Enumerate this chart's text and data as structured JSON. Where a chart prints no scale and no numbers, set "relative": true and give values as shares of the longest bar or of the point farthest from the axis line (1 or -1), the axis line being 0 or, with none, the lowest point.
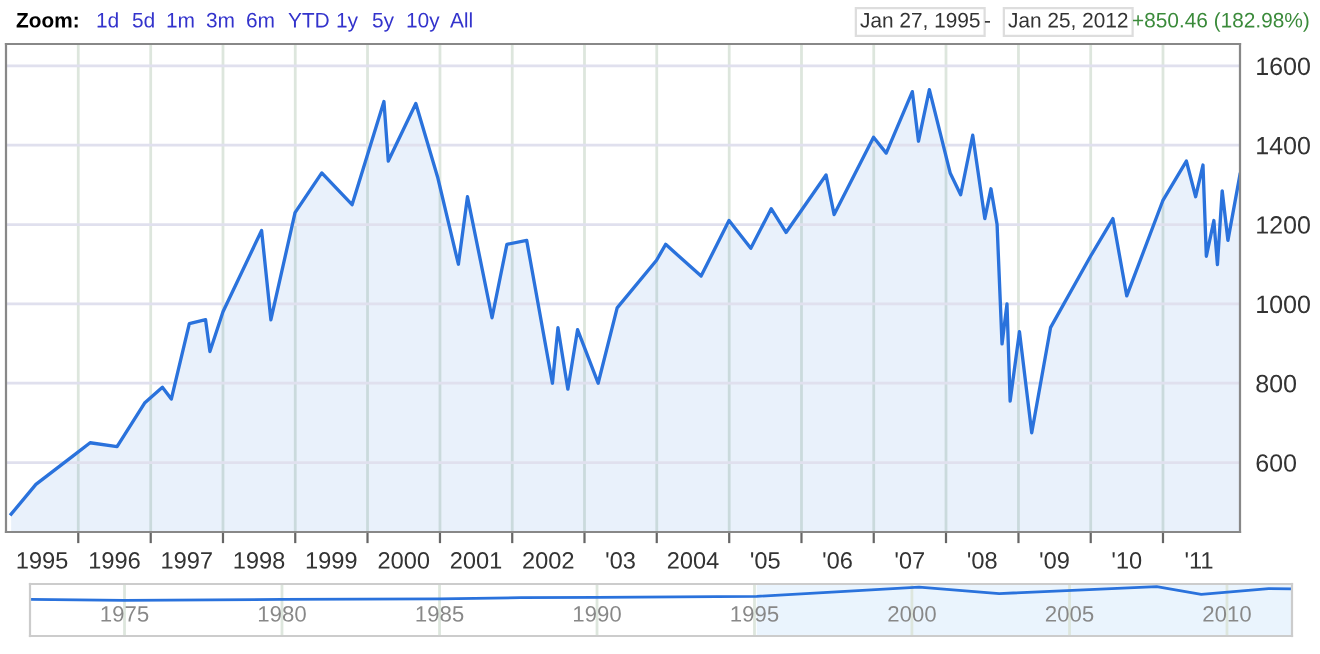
{
  "chart_data": [
    {
      "type": "area",
      "annotations": [
        "Zoom:",
        "1d",
        "5d",
        "1m",
        "3m",
        "6m",
        "YTD",
        "1y",
        "5y",
        "10y",
        "All",
        "Jan 27, 1995",
        "-",
        "Jan 25, 2012",
        "+850.46 (182.98%)"
      ],
      "xlim": [
        "1995-01-01",
        "2012-01-25"
      ],
      "ylim": [
        425,
        1655
      ],
      "yticks": [
        600,
        800,
        1000,
        1200,
        1400,
        1600
      ],
      "grid": true,
      "xticks": [
        {
          "value": "1995-07-02",
          "label": "1995"
        },
        {
          "value": "1996-01-01",
          "label": null
        },
        {
          "value": "1996-07-02",
          "label": "1996"
        },
        {
          "value": "1997-01-01",
          "label": null
        },
        {
          "value": "1997-07-02",
          "label": "1997"
        },
        {
          "value": "1998-01-01",
          "label": null
        },
        {
          "value": "1998-07-02",
          "label": "1998"
        },
        {
          "value": "1999-01-01",
          "label": null
        },
        {
          "value": "1999-07-02",
          "label": "1999"
        },
        {
          "value": "2000-01-01",
          "label": null
        },
        {
          "value": "2000-07-02",
          "label": "2000"
        },
        {
          "value": "2001-01-01",
          "label": null
        },
        {
          "value": "2001-07-02",
          "label": "2001"
        },
        {
          "value": "2002-01-01",
          "label": null
        },
        {
          "value": "2002-07-02",
          "label": "2002"
        },
        {
          "value": "2003-01-01",
          "label": null
        },
        {
          "value": "2003-07-02",
          "label": "'03"
        },
        {
          "value": "2004-01-01",
          "label": null
        },
        {
          "value": "2004-07-02",
          "label": "2004"
        },
        {
          "value": "2005-01-01",
          "label": null
        },
        {
          "value": "2005-07-02",
          "label": "'05"
        },
        {
          "value": "2006-01-01",
          "label": null
        },
        {
          "value": "2006-07-02",
          "label": "'06"
        },
        {
          "value": "2007-01-01",
          "label": null
        },
        {
          "value": "2007-07-02",
          "label": "'07"
        },
        {
          "value": "2008-01-01",
          "label": null
        },
        {
          "value": "2008-07-02",
          "label": "'08"
        },
        {
          "value": "2009-01-01",
          "label": null
        },
        {
          "value": "2009-07-02",
          "label": "'09"
        },
        {
          "value": "2010-01-01",
          "label": null
        },
        {
          "value": "2010-07-02",
          "label": "'10"
        },
        {
          "value": "2011-01-01",
          "label": null
        },
        {
          "value": "2011-07-02",
          "label": "'11"
        }
      ],
      "x": [
        "1995-01-27",
        "1995-06-01",
        "1995-12-01",
        "1996-03-01",
        "1996-07-15",
        "1996-12-01",
        "1997-03-01",
        "1997-04-15",
        "1997-07-15",
        "1997-10-05",
        "1997-10-27",
        "1998-01-01",
        "1998-07-15",
        "1998-08-31",
        "1998-12-31",
        "1999-05-15",
        "1999-10-15",
        "2000-03-24",
        "2000-04-15",
        "2000-09-01",
        "2000-12-20",
        "2001-04-04",
        "2001-05-20",
        "2001-09-21",
        "2001-12-05",
        "2002-03-15",
        "2002-07-23",
        "2002-08-20",
        "2002-10-09",
        "2002-11-27",
        "2003-03-11",
        "2003-06-15",
        "2003-12-31",
        "2004-02-15",
        "2004-08-12",
        "2004-12-31",
        "2005-04-20",
        "2005-08-01",
        "2005-10-15",
        "2006-05-05",
        "2006-06-15",
        "2006-12-31",
        "2007-03-05",
        "2007-07-15",
        "2007-08-15",
        "2007-10-09",
        "2008-01-22",
        "2008-03-15",
        "2008-05-15",
        "2008-07-15",
        "2008-08-15",
        "2008-09-15",
        "2008-10-10",
        "2008-11-04",
        "2008-11-20",
        "2009-01-06",
        "2009-03-09",
        "2009-06-12",
        "2009-12-31",
        "2010-04-23",
        "2010-07-02",
        "2010-12-31",
        "2011-04-29",
        "2011-06-15",
        "2011-07-22",
        "2011-08-08",
        "2011-09-15",
        "2011-10-03",
        "2011-10-27",
        "2011-11-25",
        "2012-01-25"
      ],
      "series": [
        {
          "color": "#2a72dc",
          "values": [
            470,
            545,
            615,
            650,
            640,
            750,
            790,
            760,
            950,
            960,
            880,
            980,
            1185,
            960,
            1230,
            1330,
            1250,
            1510,
            1360,
            1505,
            1320,
            1100,
            1270,
            965,
            1150,
            1160,
            800,
            940,
            785,
            935,
            800,
            990,
            1110,
            1150,
            1070,
            1210,
            1140,
            1240,
            1180,
            1325,
            1225,
            1420,
            1380,
            1535,
            1410,
            1540,
            1330,
            1275,
            1425,
            1215,
            1290,
            1200,
            899,
            1000,
            755,
            930,
            675,
            940,
            1120,
            1215,
            1020,
            1260,
            1360,
            1270,
            1350,
            1120,
            1210,
            1099,
            1285,
            1160,
            1326
          ]
        }
      ]
    },
    {
      "type": "line",
      "relative": true,
      "xlim": [
        "1972-01-01",
        "2012-01-25"
      ],
      "xticks": [
        {
          "value": "1975",
          "label": "1975"
        },
        {
          "value": "1980",
          "label": "1980"
        },
        {
          "value": "1985",
          "label": "1985"
        },
        {
          "value": "1990",
          "label": "1990"
        },
        {
          "value": "1995",
          "label": "1995"
        },
        {
          "value": "2000",
          "label": "2000"
        },
        {
          "value": "2005",
          "label": "2005"
        },
        {
          "value": "2010",
          "label": "2010"
        }
      ],
      "grid": "x",
      "bands": [
        {
          "axis": "x",
          "from": "1995-01-27",
          "to": "2012-01-25",
          "color": "#eaf4fd"
        }
      ],
      "x": [
        "1972-01-01",
        "1975-01-01",
        "1980-01-01",
        "1985-01-01",
        "1987-08-01",
        "1990-01-01",
        "1995-01-27",
        "2000-03-24",
        "2002-10-09",
        "2007-10-09",
        "2009-03-09",
        "2011-04-29",
        "2012-01-25"
      ],
      "series": [
        {
          "color": "#2a72dc",
          "values": [
            0.07,
            0,
            0.07,
            0.12,
            0.2,
            0.22,
            0.3,
            0.97,
            0.5,
            1,
            0.45,
            0.87,
            0.85
          ]
        }
      ]
    }
  ]
}
